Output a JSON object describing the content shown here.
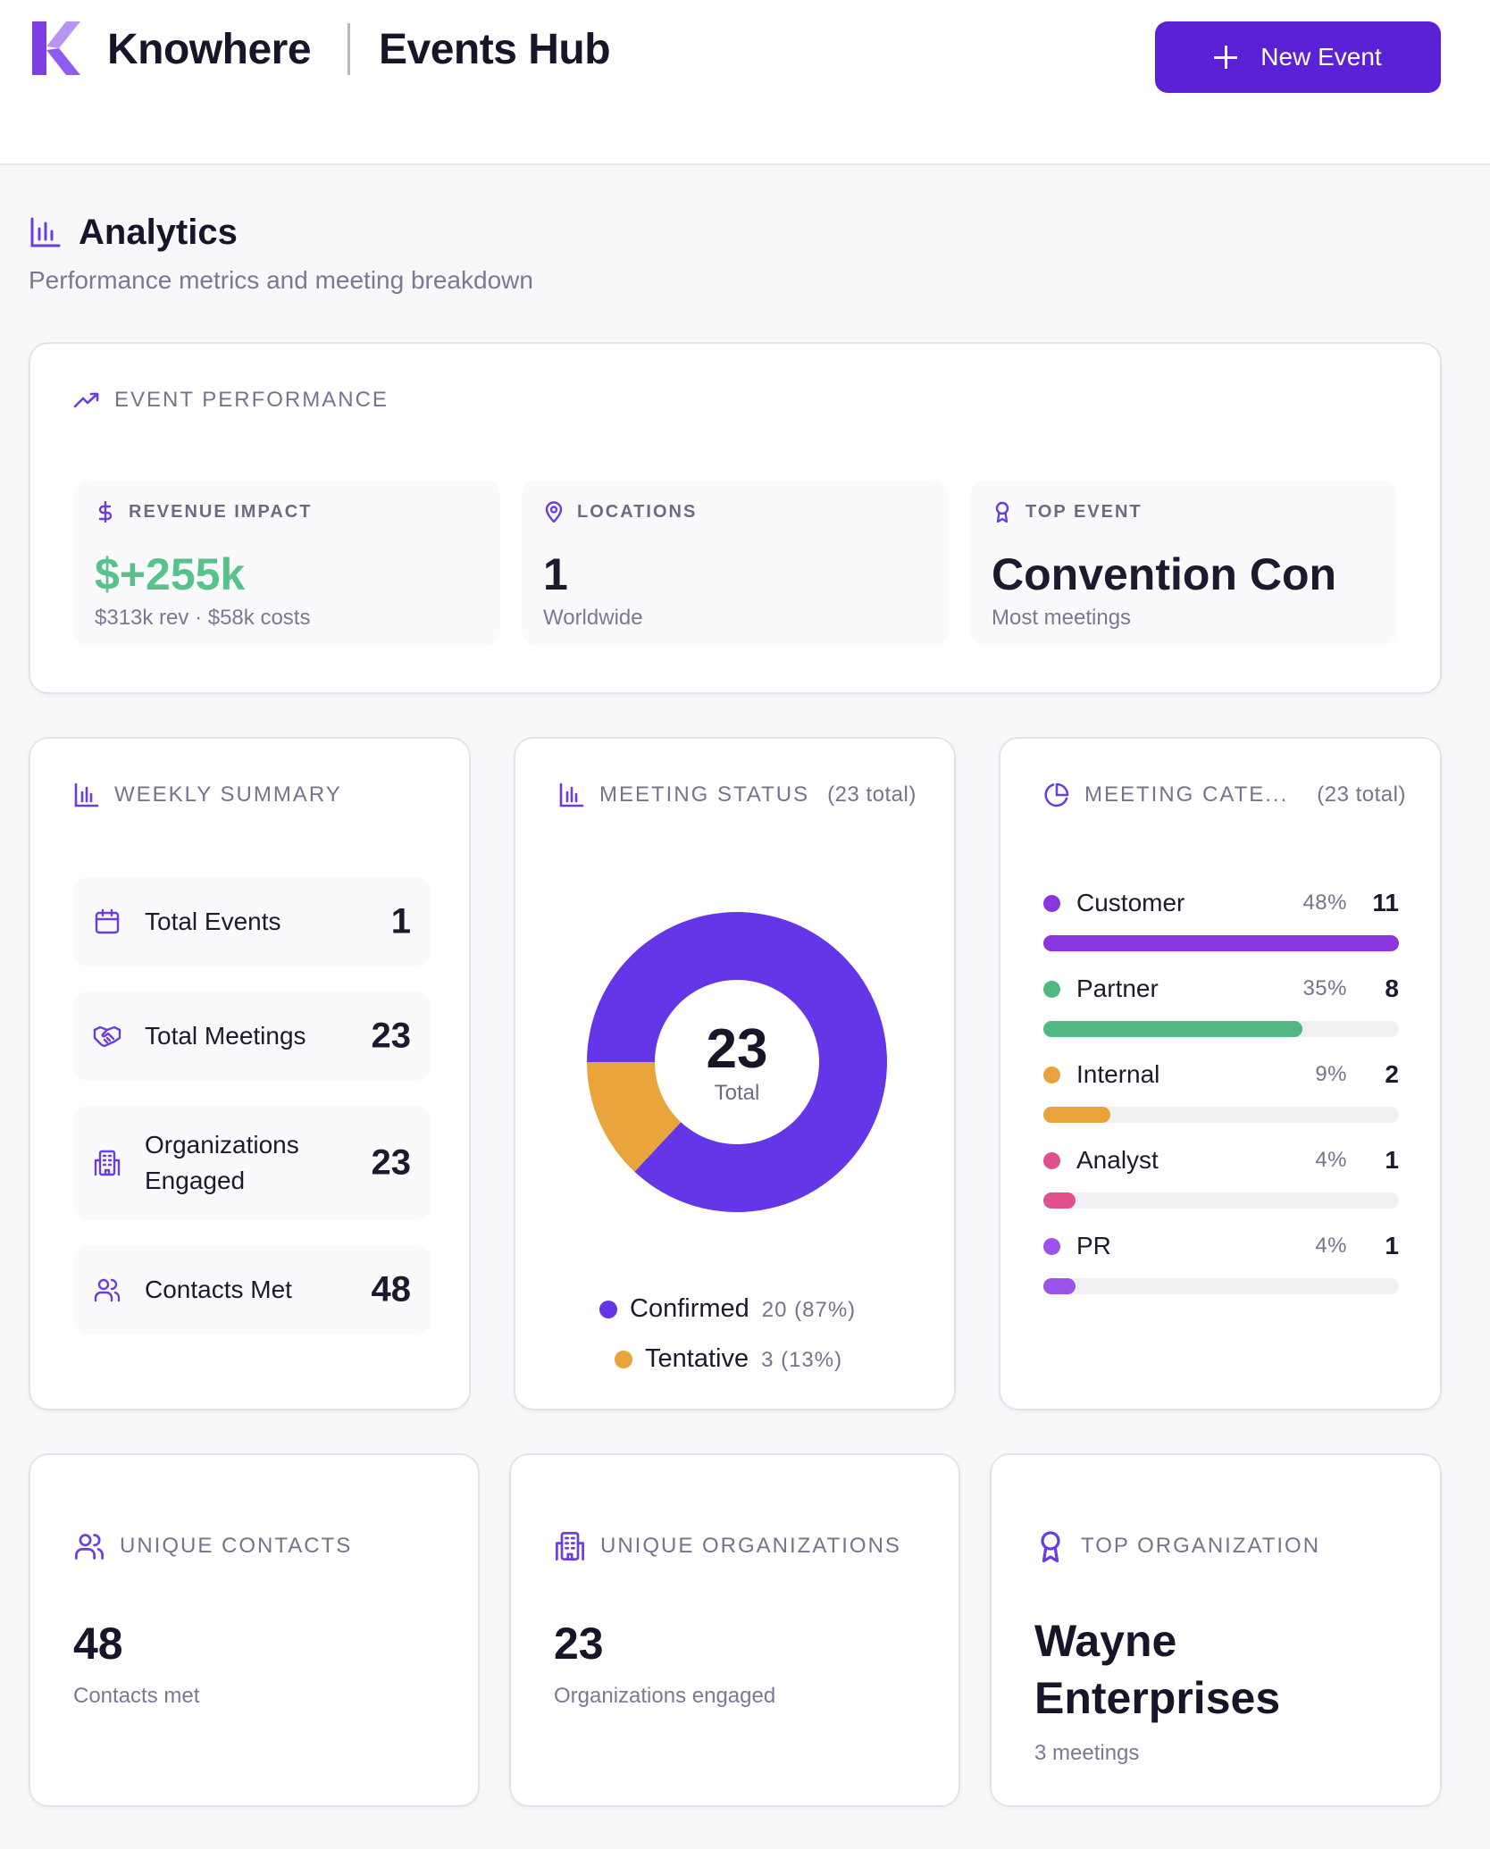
{
  "header": {
    "brand": "Knowhere",
    "title": "Events Hub",
    "new_event_label": "New Event"
  },
  "colors": {
    "primary": "#5b21d6",
    "confirmed": "#6436e8",
    "tentative": "#e9a43b",
    "customer": "#8a35e0",
    "partner": "#52b883",
    "internal": "#eaa23b",
    "analyst": "#e0508c",
    "pr": "#9d52ea",
    "positive": "#57c28a"
  },
  "analytics": {
    "title": "Analytics",
    "subtitle": "Performance metrics and meeting breakdown"
  },
  "performance": {
    "heading": "EVENT PERFORMANCE",
    "revenue": {
      "label": "REVENUE IMPACT",
      "value": "$+255k",
      "sub": "$313k rev · $58k costs",
      "icon": "dollar-icon"
    },
    "locations": {
      "label": "LOCATIONS",
      "value": "1",
      "sub": "Worldwide",
      "icon": "map-pin-icon"
    },
    "top_event": {
      "label": "TOP EVENT",
      "value": "Convention Con",
      "sub": "Most meetings",
      "icon": "award-icon"
    }
  },
  "weekly": {
    "heading": "WEEKLY SUMMARY",
    "rows": [
      {
        "label": "Total Events",
        "value": "1",
        "icon": "calendar-icon"
      },
      {
        "label": "Total Meetings",
        "value": "23",
        "icon": "handshake-icon"
      },
      {
        "label": "Organizations Engaged",
        "value": "23",
        "icon": "building-icon"
      },
      {
        "label": "Contacts Met",
        "value": "48",
        "icon": "users-icon"
      }
    ]
  },
  "status": {
    "heading": "MEETING STATUS",
    "total_label": "(23 total)",
    "center_value": "23",
    "center_label": "Total",
    "chart_data": {
      "type": "pie",
      "categories": [
        "Confirmed",
        "Tentative"
      ],
      "values": [
        20,
        3
      ]
    },
    "legend": [
      {
        "label": "Confirmed",
        "detail": "20 (87%)"
      },
      {
        "label": "Tentative",
        "detail": "3 (13%)"
      }
    ]
  },
  "categories": {
    "heading": "MEETING CATE...",
    "total_label": "(23 total)",
    "items": [
      {
        "name": "Customer",
        "pct": "48%",
        "count": "11",
        "fraction": 0.48
      },
      {
        "name": "Partner",
        "pct": "35%",
        "count": "8",
        "fraction": 0.35
      },
      {
        "name": "Internal",
        "pct": "9%",
        "count": "2",
        "fraction": 0.09
      },
      {
        "name": "Analyst",
        "pct": "4%",
        "count": "1",
        "fraction": 0.04
      },
      {
        "name": "PR",
        "pct": "4%",
        "count": "1",
        "fraction": 0.04
      }
    ]
  },
  "unique_contacts": {
    "heading": "UNIQUE CONTACTS",
    "value": "48",
    "sub": "Contacts met",
    "icon": "users-icon"
  },
  "unique_orgs": {
    "heading": "UNIQUE ORGANIZATIONS",
    "value": "23",
    "sub": "Organizations engaged",
    "icon": "building-icon"
  },
  "top_org": {
    "heading": "TOP ORGANIZATION",
    "value": "Wayne Enterprises",
    "sub": "3 meetings",
    "icon": "award-icon"
  }
}
